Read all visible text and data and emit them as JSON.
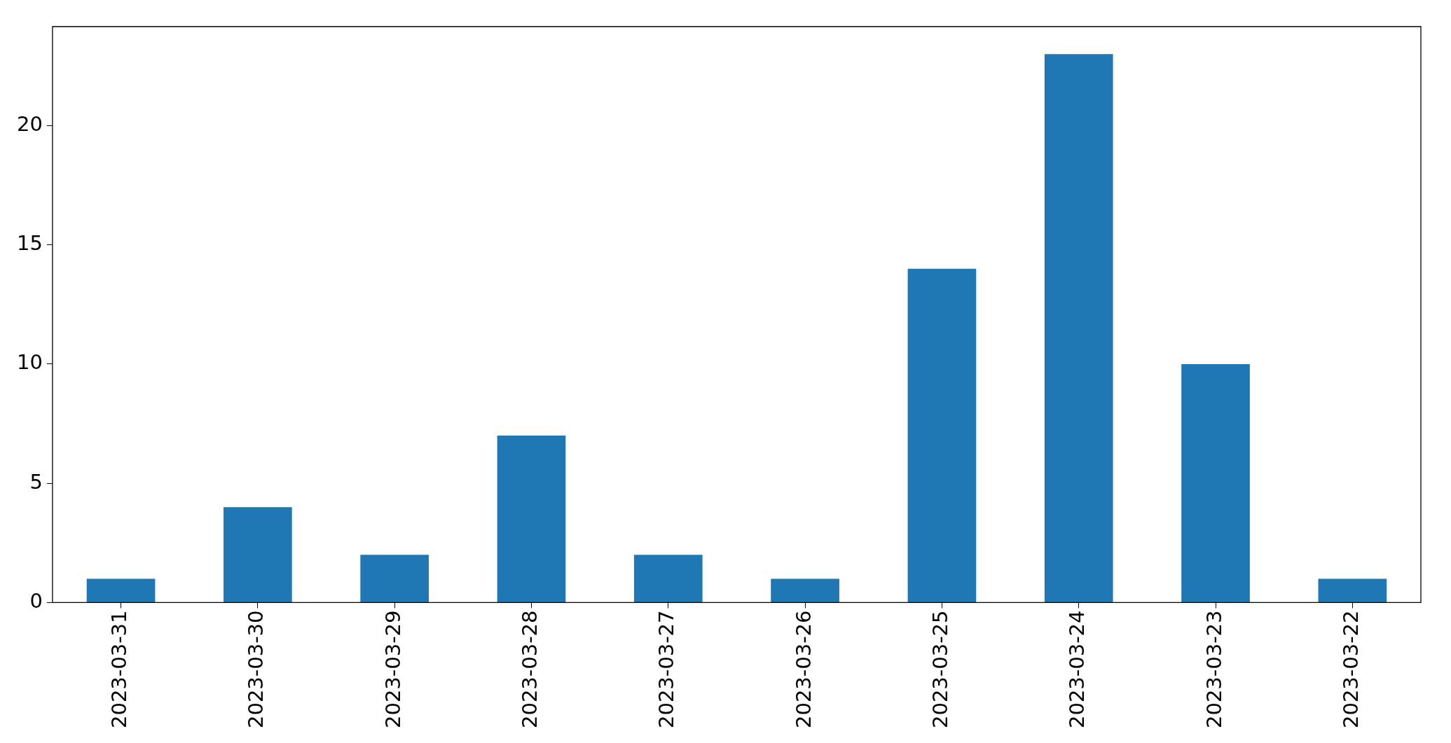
{
  "chart_data": {
    "type": "bar",
    "categories": [
      "2023-03-31",
      "2023-03-30",
      "2023-03-29",
      "2023-03-28",
      "2023-03-27",
      "2023-03-26",
      "2023-03-25",
      "2023-03-24",
      "2023-03-23",
      "2023-03-22"
    ],
    "values": [
      1,
      4,
      2,
      7,
      2,
      1,
      14,
      23,
      10,
      1
    ],
    "color": "#1f77b4",
    "ylim": [
      0,
      24.15
    ],
    "yticks": [
      0,
      5,
      10,
      15,
      20
    ],
    "grid": false,
    "legend": false
  }
}
